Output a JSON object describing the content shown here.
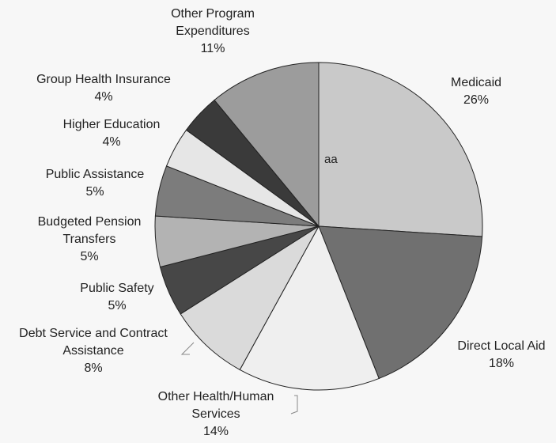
{
  "chart_data": {
    "type": "pie",
    "categories": [
      "Medicaid",
      "Direct Local Aid",
      "Other Health/Human Services",
      "Debt Service and Contract Assistance",
      "Public Safety",
      "Budgeted Pension Transfers",
      "Public Assistance",
      "Higher Education",
      "Group Health Insurance",
      "Other Program Expenditures"
    ],
    "values": [
      26,
      18,
      14,
      8,
      5,
      5,
      5,
      4,
      4,
      11
    ],
    "value_labels": [
      "26%",
      "18%",
      "14%",
      "8%",
      "5%",
      "5%",
      "5%",
      "4%",
      "4%",
      "11%"
    ],
    "colors": [
      "#c9c9c9",
      "#707070",
      "#efefef",
      "#dadada",
      "#474747",
      "#b3b3b3",
      "#7c7c7c",
      "#e6e6e6",
      "#3a3a3a",
      "#9c9c9c"
    ],
    "annotation": "aa"
  }
}
